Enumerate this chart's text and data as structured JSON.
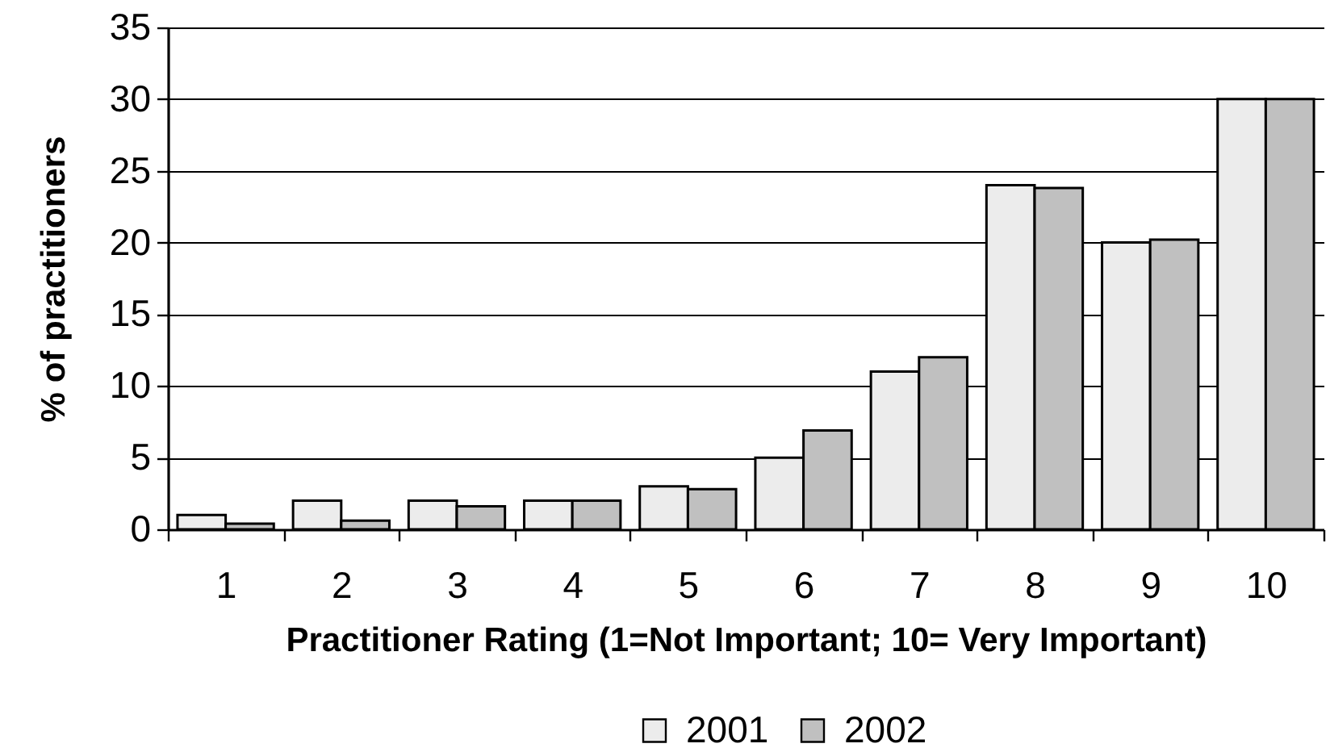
{
  "chart_data": {
    "type": "bar",
    "xlabel": "Practitioner Rating (1=Not Important; 10= Very Important)",
    "ylabel": "% of practitioners",
    "categories": [
      "1",
      "2",
      "3",
      "4",
      "5",
      "6",
      "7",
      "8",
      "9",
      "10"
    ],
    "series": [
      {
        "name": "2001",
        "color": "#ececec",
        "values": [
          1,
          2,
          2,
          2,
          3,
          5,
          11,
          24,
          20,
          30
        ]
      },
      {
        "name": "2002",
        "color": "#c0c0c0",
        "values": [
          0.4,
          0.6,
          1.6,
          2,
          2.8,
          6.9,
          12,
          23.8,
          20.2,
          30
        ]
      }
    ],
    "ylim": [
      0,
      35
    ],
    "yticks": [
      0,
      5,
      10,
      15,
      20,
      25,
      30,
      35
    ],
    "grid": "y",
    "legend": "bottom"
  }
}
